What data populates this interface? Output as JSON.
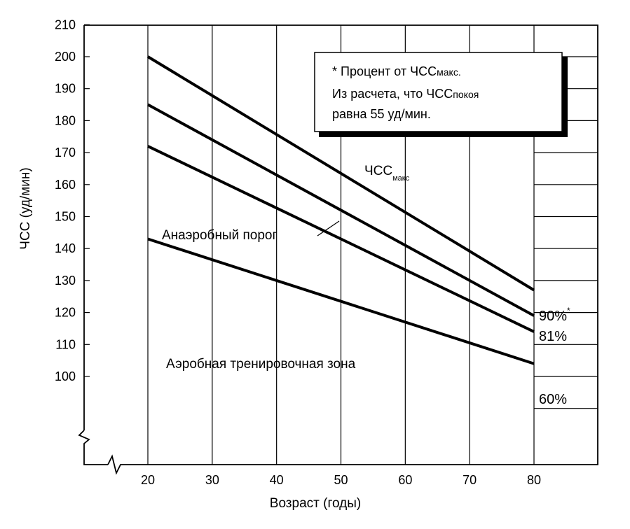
{
  "chart_data": {
    "type": "line",
    "xlabel": "Возраст (годы)",
    "ylabel": "ЧСС (уд/мин)",
    "xlim": [
      10,
      90
    ],
    "ylim": [
      85,
      210
    ],
    "x_ticks": [
      "20",
      "30",
      "40",
      "50",
      "60",
      "70",
      "80"
    ],
    "y_ticks": [
      "100",
      "110",
      "120",
      "130",
      "140",
      "150",
      "160",
      "170",
      "180",
      "190",
      "200",
      "210"
    ],
    "y_tick_values": [
      100,
      110,
      120,
      130,
      140,
      150,
      160,
      170,
      180,
      190,
      200,
      210
    ],
    "x_tick_values": [
      20,
      30,
      40,
      50,
      60,
      70,
      80
    ],
    "grid": "vertical",
    "series": [
      {
        "name": "ЧСС",
        "name_sub": "макс",
        "x": [
          20,
          80
        ],
        "y": [
          200,
          127
        ]
      },
      {
        "name": "90%",
        "name_sup": "*",
        "x": [
          20,
          80
        ],
        "y": [
          185,
          119
        ]
      },
      {
        "name": "81%",
        "x": [
          20,
          80
        ],
        "y": [
          172,
          114
        ]
      },
      {
        "name": "60%",
        "x": [
          20,
          80
        ],
        "y": [
          143,
          104
        ]
      }
    ],
    "annotations": {
      "anaerobic": "Анаэробный порог",
      "aerobic": "Аэробная тренировочная зона"
    },
    "note": {
      "line1_a": "* Процент от ЧСС",
      "line1_sub": "макс.",
      "line2_a": "Из расчета, что ЧСС",
      "line2_sub": "покоя",
      "line3": "равна 55 уд/мин."
    }
  }
}
